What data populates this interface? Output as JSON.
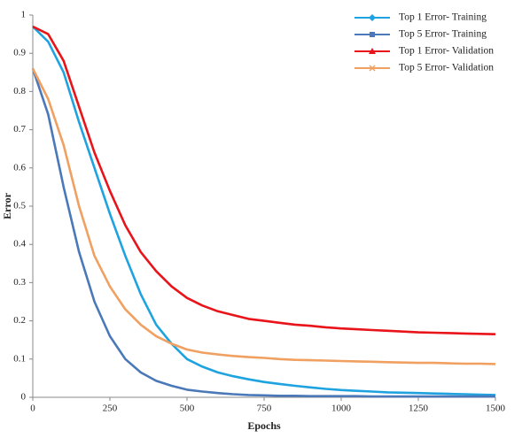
{
  "chart_data": {
    "type": "line",
    "x_label": "Epochs",
    "y_label": "Error",
    "x": [
      0,
      50,
      100,
      150,
      200,
      250,
      300,
      350,
      400,
      450,
      500,
      550,
      600,
      650,
      700,
      750,
      800,
      850,
      900,
      950,
      1000,
      1050,
      1100,
      1150,
      1200,
      1250,
      1300,
      1350,
      1400,
      1450,
      1500
    ],
    "series": [
      {
        "name": "Top 1 Error- Training",
        "color": "#1fa3e0",
        "marker": "diamond",
        "values": [
          0.97,
          0.93,
          0.85,
          0.72,
          0.6,
          0.48,
          0.37,
          0.27,
          0.19,
          0.14,
          0.1,
          0.08,
          0.065,
          0.055,
          0.047,
          0.04,
          0.035,
          0.03,
          0.026,
          0.022,
          0.019,
          0.017,
          0.015,
          0.013,
          0.012,
          0.011,
          0.01,
          0.009,
          0.008,
          0.007,
          0.006
        ]
      },
      {
        "name": "Top 5 Error- Training",
        "color": "#4a78b8",
        "marker": "square",
        "values": [
          0.86,
          0.74,
          0.55,
          0.38,
          0.25,
          0.16,
          0.1,
          0.065,
          0.043,
          0.03,
          0.02,
          0.015,
          0.011,
          0.008,
          0.006,
          0.005,
          0.004,
          0.004,
          0.003,
          0.003,
          0.003,
          0.003,
          0.002,
          0.002,
          0.002,
          0.002,
          0.002,
          0.002,
          0.002,
          0.002,
          0.002
        ]
      },
      {
        "name": "Top 1 Error- Validation",
        "color": "#e8141a",
        "marker": "triangle",
        "values": [
          0.97,
          0.95,
          0.88,
          0.76,
          0.64,
          0.54,
          0.45,
          0.38,
          0.33,
          0.29,
          0.26,
          0.24,
          0.225,
          0.215,
          0.205,
          0.2,
          0.195,
          0.19,
          0.187,
          0.183,
          0.18,
          0.178,
          0.176,
          0.174,
          0.172,
          0.17,
          0.169,
          0.168,
          0.167,
          0.166,
          0.165
        ]
      },
      {
        "name": "Top 5 Error- Validation",
        "color": "#f0a060",
        "marker": "cross",
        "values": [
          0.86,
          0.78,
          0.66,
          0.5,
          0.37,
          0.29,
          0.23,
          0.19,
          0.16,
          0.14,
          0.125,
          0.117,
          0.112,
          0.108,
          0.105,
          0.103,
          0.1,
          0.098,
          0.097,
          0.096,
          0.095,
          0.094,
          0.093,
          0.092,
          0.091,
          0.09,
          0.09,
          0.089,
          0.088,
          0.088,
          0.087
        ]
      }
    ],
    "xlim": [
      0,
      1500
    ],
    "xticks": [
      0,
      250,
      500,
      750,
      1000,
      1250,
      1500
    ],
    "ylim": [
      0,
      1
    ],
    "yticks": [
      0,
      0.1,
      0.2,
      0.3,
      0.4,
      0.5,
      0.6,
      0.7,
      0.8,
      0.9,
      1
    ],
    "grid": false,
    "legend_position": "top-right"
  }
}
